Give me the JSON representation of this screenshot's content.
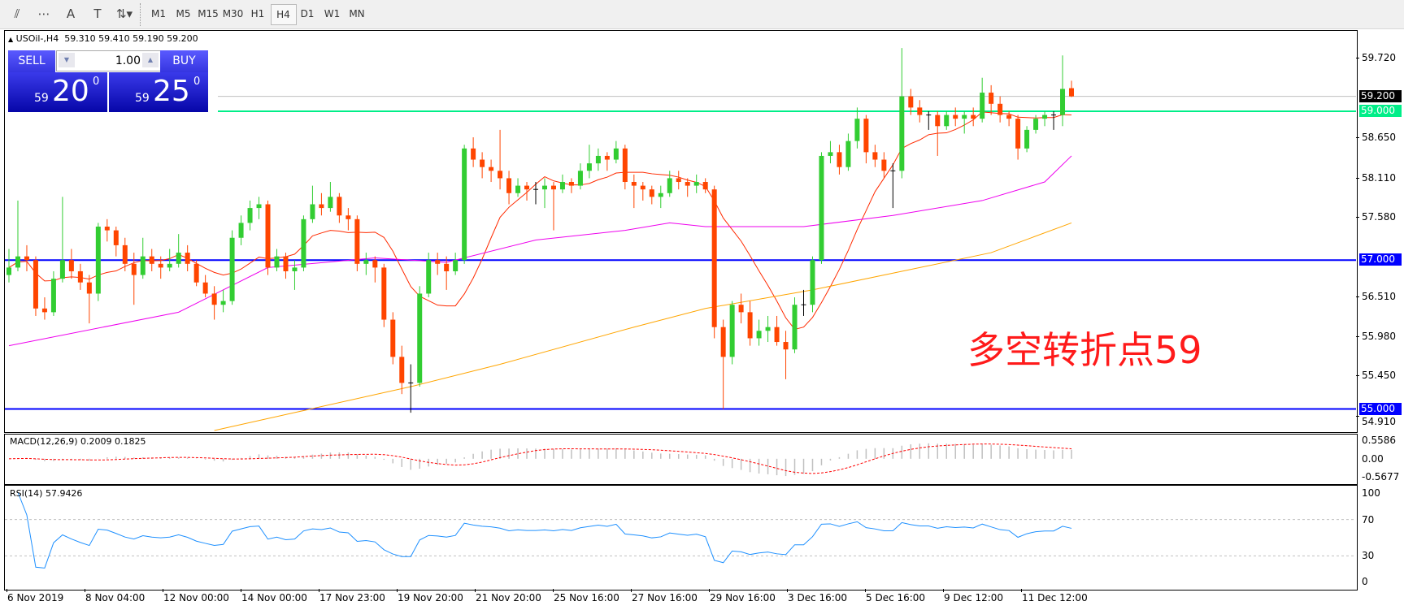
{
  "toolbar": {
    "tools": [
      {
        "name": "fibonacci-expansion-icon",
        "glyph": "⫽"
      },
      {
        "name": "fibonacci-fan-icon",
        "glyph": "⋯"
      },
      {
        "name": "text-icon",
        "glyph": "A"
      },
      {
        "name": "text-label-icon",
        "glyph": "T"
      },
      {
        "name": "arrows-icon",
        "glyph": "⇅▾"
      }
    ],
    "timeframes": [
      "M1",
      "M5",
      "M15",
      "M30",
      "H1",
      "H4",
      "D1",
      "W1",
      "MN"
    ],
    "active_timeframe": "H4"
  },
  "chart": {
    "header": "USOil-,H4  59.310 59.410 59.190 59.200",
    "annotation": "多空转折点59",
    "annotation_color": "#ff1a1a"
  },
  "trade_panel": {
    "sell_label": "SELL",
    "buy_label": "BUY",
    "lot_value": "1.00",
    "sell_price": {
      "big": "59",
      "main": "20",
      "sup": "0"
    },
    "buy_price": {
      "big": "59",
      "main": "25",
      "sup": "0"
    }
  },
  "chart_data": {
    "type": "candlestick",
    "symbol": "USOil-",
    "timeframe": "H4",
    "ylim": [
      54.7,
      60.08
    ],
    "y_ticks": [
      "59.720",
      "58.650",
      "58.110",
      "57.580",
      "56.510",
      "55.980",
      "55.450",
      "54.910"
    ],
    "bid_line": {
      "value": 59.2,
      "label": "59.200",
      "color": "#000000"
    },
    "hlines": [
      {
        "value": 59.0,
        "label": "59.000",
        "color": "#00ee88"
      },
      {
        "value": 57.0,
        "label": "57.000",
        "color": "#0000ff"
      },
      {
        "value": 55.0,
        "label": "55.000",
        "color": "#0000ff"
      }
    ],
    "colors": {
      "bull": "#32cd32",
      "bear": "#ff4500",
      "ma_fast": "#ff2a00",
      "ma_mid": "#ee00ee",
      "ma_slow": "#ffa500"
    },
    "x_labels": [
      "6 Nov 2019",
      "8 Nov 04:00",
      "12 Nov 00:00",
      "14 Nov 00:00",
      "17 Nov 23:00",
      "19 Nov 20:00",
      "21 Nov 20:00",
      "25 Nov 16:00",
      "27 Nov 16:00",
      "29 Nov 16:00",
      "3 Dec 16:00",
      "5 Dec 16:00",
      "9 Dec 12:00",
      "11 Dec 12:00"
    ],
    "ohlc": [
      [
        56.8,
        57.15,
        56.7,
        56.9
      ],
      [
        56.9,
        57.8,
        56.85,
        57.05
      ],
      [
        57.05,
        57.2,
        56.85,
        57.0
      ],
      [
        57.0,
        57.05,
        56.25,
        56.35
      ],
      [
        56.35,
        56.5,
        56.2,
        56.3
      ],
      [
        56.3,
        56.85,
        56.25,
        56.75
      ],
      [
        56.75,
        57.85,
        56.7,
        57.0
      ],
      [
        57.0,
        57.15,
        56.75,
        56.85
      ],
      [
        56.85,
        56.95,
        56.6,
        56.7
      ],
      [
        56.7,
        56.8,
        56.15,
        56.55
      ],
      [
        56.55,
        57.5,
        56.45,
        57.45
      ],
      [
        57.45,
        57.55,
        57.25,
        57.4
      ],
      [
        57.4,
        57.45,
        57.05,
        57.2
      ],
      [
        57.2,
        57.3,
        56.85,
        56.95
      ],
      [
        56.95,
        57.1,
        56.4,
        56.8
      ],
      [
        56.8,
        57.3,
        56.75,
        57.05
      ],
      [
        57.05,
        57.15,
        56.85,
        56.95
      ],
      [
        56.95,
        57.05,
        56.75,
        56.9
      ],
      [
        56.9,
        57.15,
        56.85,
        56.95
      ],
      [
        56.95,
        57.35,
        56.9,
        57.1
      ],
      [
        57.1,
        57.2,
        56.85,
        56.95
      ],
      [
        56.95,
        57.0,
        56.65,
        56.7
      ],
      [
        56.7,
        56.8,
        56.5,
        56.55
      ],
      [
        56.55,
        56.65,
        56.2,
        56.4
      ],
      [
        56.4,
        56.6,
        56.3,
        56.45
      ],
      [
        56.45,
        57.4,
        56.4,
        57.3
      ],
      [
        57.3,
        57.6,
        57.2,
        57.5
      ],
      [
        57.5,
        57.8,
        57.4,
        57.7
      ],
      [
        57.7,
        57.85,
        57.55,
        57.75
      ],
      [
        57.75,
        57.8,
        56.8,
        56.9
      ],
      [
        56.9,
        57.15,
        56.85,
        57.05
      ],
      [
        57.05,
        57.1,
        56.75,
        56.85
      ],
      [
        56.85,
        57.0,
        56.6,
        56.9
      ],
      [
        56.9,
        57.6,
        56.85,
        57.55
      ],
      [
        57.55,
        58.0,
        57.5,
        57.75
      ],
      [
        57.75,
        57.9,
        57.6,
        57.7
      ],
      [
        57.7,
        58.05,
        57.65,
        57.85
      ],
      [
        57.85,
        57.9,
        57.5,
        57.6
      ],
      [
        57.6,
        57.7,
        57.4,
        57.55
      ],
      [
        57.55,
        57.6,
        56.85,
        56.95
      ],
      [
        56.95,
        57.1,
        56.8,
        57.0
      ],
      [
        57.0,
        57.05,
        56.7,
        56.9
      ],
      [
        56.9,
        56.95,
        56.1,
        56.2
      ],
      [
        56.2,
        56.3,
        55.6,
        55.7
      ],
      [
        55.7,
        55.85,
        55.2,
        55.35
      ],
      [
        55.35,
        55.6,
        54.95,
        55.35
      ],
      [
        55.35,
        56.65,
        55.3,
        56.55
      ],
      [
        56.55,
        57.1,
        56.5,
        57.0
      ],
      [
        57.0,
        57.1,
        56.8,
        56.95
      ],
      [
        56.95,
        57.05,
        56.6,
        56.85
      ],
      [
        56.85,
        57.1,
        56.8,
        57.0
      ],
      [
        57.0,
        58.55,
        56.95,
        58.5
      ],
      [
        58.5,
        58.65,
        58.25,
        58.35
      ],
      [
        58.35,
        58.45,
        58.1,
        58.25
      ],
      [
        58.25,
        58.35,
        58.05,
        58.2
      ],
      [
        58.2,
        58.75,
        57.95,
        58.1
      ],
      [
        58.1,
        58.2,
        57.75,
        57.9
      ],
      [
        57.9,
        58.1,
        57.85,
        58.0
      ],
      [
        58.0,
        58.05,
        57.8,
        57.95
      ],
      [
        57.95,
        58.05,
        57.75,
        57.95
      ],
      [
        57.95,
        58.1,
        57.7,
        58.0
      ],
      [
        58.0,
        58.05,
        57.4,
        57.95
      ],
      [
        57.95,
        58.15,
        57.9,
        58.05
      ],
      [
        58.05,
        58.1,
        57.9,
        58.0
      ],
      [
        58.0,
        58.3,
        57.95,
        58.2
      ],
      [
        58.2,
        58.55,
        58.1,
        58.3
      ],
      [
        58.3,
        58.5,
        58.2,
        58.4
      ],
      [
        58.4,
        58.45,
        58.2,
        58.35
      ],
      [
        58.35,
        58.6,
        58.3,
        58.5
      ],
      [
        58.5,
        58.55,
        57.95,
        58.05
      ],
      [
        58.05,
        58.15,
        57.7,
        58.0
      ],
      [
        58.0,
        58.05,
        57.8,
        57.95
      ],
      [
        57.95,
        58.0,
        57.75,
        57.85
      ],
      [
        57.85,
        58.0,
        57.7,
        57.9
      ],
      [
        57.9,
        58.2,
        57.85,
        58.1
      ],
      [
        58.1,
        58.2,
        57.95,
        58.05
      ],
      [
        58.05,
        58.1,
        57.85,
        58.0
      ],
      [
        58.0,
        58.15,
        57.9,
        58.05
      ],
      [
        58.05,
        58.1,
        57.9,
        57.95
      ],
      [
        57.95,
        58.0,
        55.95,
        56.1
      ],
      [
        56.1,
        56.2,
        55.0,
        55.7
      ],
      [
        55.7,
        56.45,
        55.6,
        56.4
      ],
      [
        56.4,
        56.55,
        56.15,
        56.3
      ],
      [
        56.3,
        56.45,
        55.85,
        55.95
      ],
      [
        55.95,
        56.2,
        55.85,
        56.05
      ],
      [
        56.05,
        56.25,
        55.9,
        56.1
      ],
      [
        56.1,
        56.25,
        55.85,
        55.9
      ],
      [
        55.9,
        56.05,
        55.4,
        55.8
      ],
      [
        55.8,
        56.5,
        55.75,
        56.4
      ],
      [
        56.4,
        56.6,
        56.25,
        56.4
      ],
      [
        56.4,
        57.05,
        56.3,
        57.0
      ],
      [
        57.0,
        58.45,
        56.95,
        58.4
      ],
      [
        58.4,
        58.6,
        58.3,
        58.45
      ],
      [
        58.45,
        58.55,
        58.15,
        58.25
      ],
      [
        58.25,
        58.7,
        58.2,
        58.6
      ],
      [
        58.6,
        59.05,
        58.5,
        58.9
      ],
      [
        58.9,
        58.95,
        58.3,
        58.45
      ],
      [
        58.45,
        58.55,
        58.25,
        58.35
      ],
      [
        58.35,
        58.45,
        58.1,
        58.2
      ],
      [
        58.2,
        58.3,
        57.7,
        58.2
      ],
      [
        58.2,
        59.85,
        58.1,
        59.2
      ],
      [
        59.2,
        59.3,
        58.95,
        59.05
      ],
      [
        59.05,
        59.15,
        58.85,
        58.95
      ],
      [
        58.95,
        59.0,
        58.75,
        58.95
      ],
      [
        58.95,
        59.0,
        58.4,
        58.8
      ],
      [
        58.8,
        59.0,
        58.75,
        58.95
      ],
      [
        58.95,
        59.05,
        58.8,
        58.9
      ],
      [
        58.9,
        59.0,
        58.7,
        58.95
      ],
      [
        58.95,
        59.05,
        58.8,
        58.9
      ],
      [
        58.9,
        59.45,
        58.85,
        59.25
      ],
      [
        59.25,
        59.35,
        58.95,
        59.1
      ],
      [
        59.1,
        59.2,
        58.85,
        58.95
      ],
      [
        58.95,
        59.0,
        58.8,
        58.9
      ],
      [
        58.9,
        58.95,
        58.35,
        58.5
      ],
      [
        58.5,
        58.8,
        58.45,
        58.75
      ],
      [
        58.75,
        58.95,
        58.7,
        58.9
      ],
      [
        58.9,
        59.0,
        58.8,
        58.95
      ],
      [
        58.95,
        59.0,
        58.75,
        58.95
      ],
      [
        58.95,
        59.75,
        58.8,
        59.3
      ],
      [
        59.31,
        59.41,
        59.19,
        59.2
      ]
    ],
    "ma_fast_period": 10,
    "ma_mid_points": [
      [
        0,
        55.85
      ],
      [
        19,
        56.3
      ],
      [
        29,
        56.9
      ],
      [
        41,
        57.03
      ],
      [
        49,
        56.97
      ],
      [
        59,
        57.27
      ],
      [
        69,
        57.4
      ],
      [
        74,
        57.5
      ],
      [
        78,
        57.45
      ],
      [
        89,
        57.45
      ],
      [
        99,
        57.6
      ],
      [
        109,
        57.8
      ],
      [
        116,
        58.05
      ],
      [
        119,
        58.4
      ]
    ],
    "ma_slow_points": [
      [
        23,
        54.7
      ],
      [
        45,
        55.3
      ],
      [
        55,
        55.6
      ],
      [
        70,
        56.1
      ],
      [
        78,
        56.35
      ],
      [
        90,
        56.6
      ],
      [
        100,
        56.85
      ],
      [
        110,
        57.1
      ],
      [
        119,
        57.5
      ]
    ]
  },
  "macd": {
    "title": "MACD(12,26,9) 0.2009 0.1825",
    "ticks": [
      "0.5586",
      "0.00",
      "-0.5677"
    ],
    "range": [
      -0.5677,
      0.5586
    ],
    "hist_color": "#c0c0c0",
    "signal_color": "#ff0000"
  },
  "rsi": {
    "title": "RSI(14) 57.9426",
    "ticks": [
      "100",
      "70",
      "30",
      "0"
    ],
    "levels": [
      70,
      30
    ],
    "line_color": "#1e90ff"
  }
}
